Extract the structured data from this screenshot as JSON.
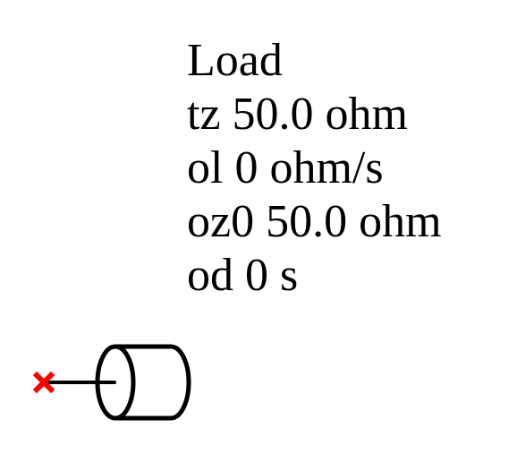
{
  "component": {
    "lines": [
      "Load",
      "tz 50.0 ohm",
      "ol 0 ohm/s",
      "oz0 50.0 ohm",
      "od 0 s"
    ]
  },
  "colors": {
    "stroke": "#000000",
    "port_marker": "#ff0000",
    "background": "#ffffff"
  },
  "icons": {
    "port": "port-cross-icon",
    "load": "load-cylinder-icon"
  }
}
